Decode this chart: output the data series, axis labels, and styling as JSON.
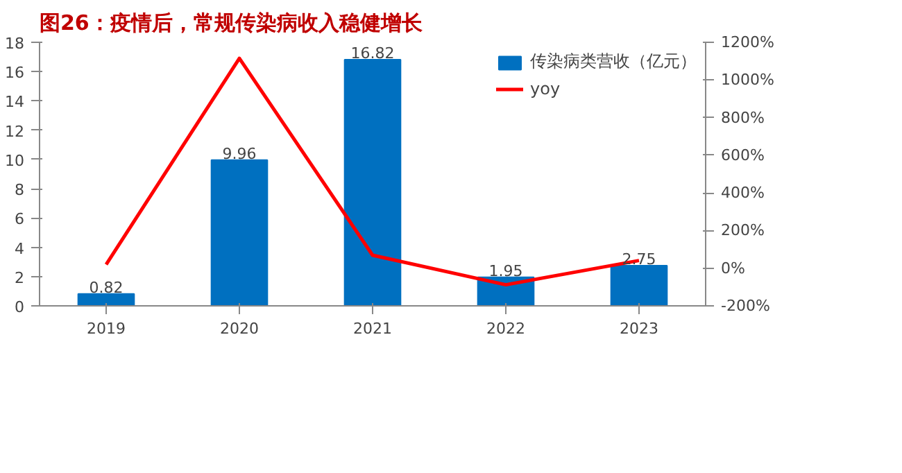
{
  "chart_data": {
    "type": "bar",
    "title": "图26：疫情后，常规传染病收入稳健增长",
    "categories": [
      "2019",
      "2020",
      "2021",
      "2022",
      "2023"
    ],
    "series": [
      {
        "name": "传染病类营收（亿元）",
        "color": "#0070c0",
        "values": [
          0.82,
          9.96,
          16.82,
          1.95,
          2.75
        ],
        "value_labels": [
          "0.82",
          "9.96",
          "16.82",
          "1.95",
          "2.75"
        ]
      },
      {
        "name": "yoy",
        "type": "line",
        "axis": "y2",
        "color": "#ff0000",
        "values": [
          20,
          1115,
          69,
          -88,
          41
        ]
      }
    ],
    "ylim": [
      0,
      18
    ],
    "yticks": [
      0,
      2,
      4,
      6,
      8,
      10,
      12,
      14,
      16,
      18
    ],
    "y2lim": [
      -200,
      1200
    ],
    "y2ticks": [
      {
        "value": -200,
        "label": "-200%"
      },
      {
        "value": 0,
        "label": "0%"
      },
      {
        "value": 200,
        "label": "200%"
      },
      {
        "value": 400,
        "label": "400%"
      },
      {
        "value": 600,
        "label": "600%"
      },
      {
        "value": 800,
        "label": "800%"
      },
      {
        "value": 1000,
        "label": "1000%"
      },
      {
        "value": 1200,
        "label": "1200%"
      }
    ],
    "grid": false,
    "legend": "top right",
    "marker": "none",
    "line_style": "solid"
  }
}
